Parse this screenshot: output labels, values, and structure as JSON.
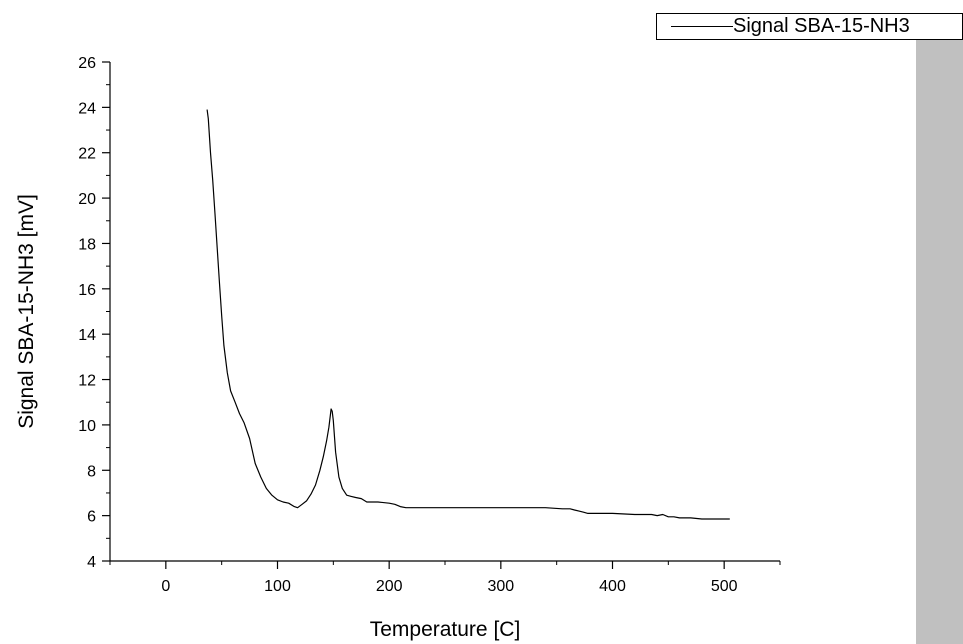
{
  "chart_data": {
    "type": "line",
    "xlabel": "Temperature [C]",
    "ylabel": "Signal SBA-15-NH3 [mV]",
    "xlim": [
      -50,
      550
    ],
    "ylim": [
      4,
      26
    ],
    "xticks": [
      0,
      100,
      200,
      300,
      400,
      500
    ],
    "yticks": [
      4,
      6,
      8,
      10,
      12,
      14,
      16,
      18,
      20,
      22,
      24,
      26
    ],
    "legend": "top-right",
    "grid": false,
    "colors": {
      "series": "#000000",
      "panel": "#c0c0c0"
    },
    "series": [
      {
        "name": "Signal SBA-15-NH3",
        "x": [
          37,
          38,
          40,
          42,
          44,
          46,
          48,
          50,
          52,
          55,
          58,
          62,
          66,
          70,
          75,
          80,
          85,
          90,
          95,
          100,
          105,
          110,
          115,
          118,
          122,
          126,
          130,
          134,
          138,
          141,
          144,
          146,
          148,
          149,
          150,
          152,
          155,
          158,
          162,
          166,
          170,
          175,
          180,
          190,
          200,
          205,
          210,
          215,
          220,
          240,
          260,
          280,
          300,
          320,
          340,
          355,
          362,
          366,
          370,
          374,
          378,
          390,
          400,
          420,
          435,
          440,
          445,
          450,
          455,
          460,
          470,
          480,
          490,
          500,
          505
        ],
        "y": [
          23.9,
          23.5,
          22.0,
          20.8,
          19.3,
          17.8,
          16.3,
          14.8,
          13.5,
          12.3,
          11.5,
          11.0,
          10.5,
          10.1,
          9.4,
          8.3,
          7.7,
          7.2,
          6.9,
          6.7,
          6.6,
          6.55,
          6.4,
          6.35,
          6.5,
          6.65,
          6.95,
          7.35,
          8.0,
          8.6,
          9.3,
          9.9,
          10.7,
          10.6,
          10.2,
          8.8,
          7.7,
          7.2,
          6.9,
          6.85,
          6.8,
          6.75,
          6.6,
          6.6,
          6.55,
          6.5,
          6.4,
          6.35,
          6.35,
          6.35,
          6.35,
          6.35,
          6.35,
          6.35,
          6.35,
          6.3,
          6.3,
          6.25,
          6.2,
          6.15,
          6.1,
          6.1,
          6.1,
          6.05,
          6.05,
          6.0,
          6.05,
          5.95,
          5.95,
          5.9,
          5.9,
          5.85,
          5.85,
          5.85,
          5.85
        ]
      }
    ]
  }
}
